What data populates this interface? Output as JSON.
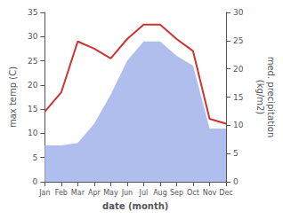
{
  "chart_data": {
    "type": "line",
    "xlabel": "date (month)",
    "ylabel": "max temp (C)",
    "y2label": "med. precipitation\n(kg/m2)",
    "categories": [
      "Jan",
      "Feb",
      "Mar",
      "Apr",
      "May",
      "Jun",
      "Jul",
      "Aug",
      "Sep",
      "Oct",
      "Nov",
      "Dec"
    ],
    "series": [
      {
        "type": "area",
        "color": "#b0beed",
        "values": [
          7.5,
          7.5,
          8.0,
          12.0,
          18.0,
          25.0,
          29.0,
          29.0,
          26.0,
          24.0,
          11.0,
          11.0
        ]
      },
      {
        "type": "line",
        "color": "#cc3333",
        "values": [
          14.5,
          18.5,
          29.0,
          27.5,
          25.5,
          29.5,
          32.5,
          32.5,
          29.5,
          27.0,
          13.0,
          12.0
        ]
      }
    ],
    "ylim": [
      0,
      35
    ],
    "yticks": [
      0,
      5,
      10,
      15,
      20,
      25,
      30,
      35
    ],
    "y2lim": [
      0,
      30
    ],
    "y2ticks": [
      0,
      5,
      10,
      15,
      20,
      25,
      30
    ],
    "grid": false
  }
}
